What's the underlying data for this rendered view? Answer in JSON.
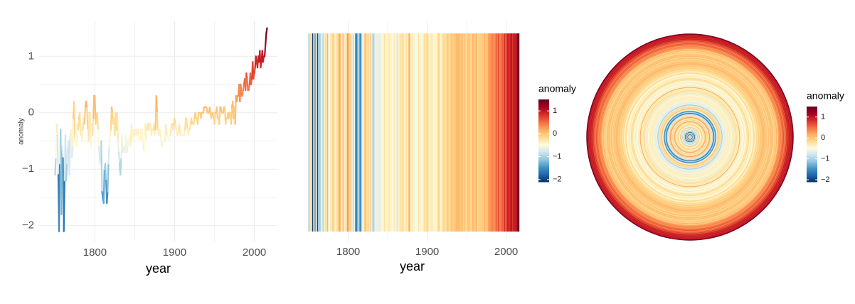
{
  "chart_data": [
    {
      "type": "line",
      "ylabel": "anomaly",
      "xlabel": "year",
      "x": [
        1750,
        1751,
        1752,
        1753,
        1754,
        1755,
        1756,
        1757,
        1758,
        1759,
        1760,
        1761,
        1762,
        1763,
        1764,
        1765,
        1766,
        1767,
        1768,
        1769,
        1770,
        1771,
        1772,
        1773,
        1774,
        1775,
        1776,
        1777,
        1778,
        1779,
        1780,
        1781,
        1782,
        1783,
        1784,
        1785,
        1786,
        1787,
        1788,
        1789,
        1790,
        1791,
        1792,
        1793,
        1794,
        1795,
        1796,
        1797,
        1798,
        1799,
        1800,
        1801,
        1802,
        1803,
        1804,
        1805,
        1806,
        1807,
        1808,
        1809,
        1810,
        1811,
        1812,
        1813,
        1814,
        1815,
        1816,
        1817,
        1818,
        1819,
        1820,
        1821,
        1822,
        1823,
        1824,
        1825,
        1826,
        1827,
        1828,
        1829,
        1830,
        1831,
        1832,
        1833,
        1834,
        1835,
        1836,
        1837,
        1838,
        1839,
        1840,
        1841,
        1842,
        1843,
        1844,
        1845,
        1846,
        1847,
        1848,
        1849,
        1850,
        1851,
        1852,
        1853,
        1854,
        1855,
        1856,
        1857,
        1858,
        1859,
        1860,
        1861,
        1862,
        1863,
        1864,
        1865,
        1866,
        1867,
        1868,
        1869,
        1870,
        1871,
        1872,
        1873,
        1874,
        1875,
        1876,
        1877,
        1878,
        1879,
        1880,
        1881,
        1882,
        1883,
        1884,
        1885,
        1886,
        1887,
        1888,
        1889,
        1890,
        1891,
        1892,
        1893,
        1894,
        1895,
        1896,
        1897,
        1898,
        1899,
        1900,
        1901,
        1902,
        1903,
        1904,
        1905,
        1906,
        1907,
        1908,
        1909,
        1910,
        1911,
        1912,
        1913,
        1914,
        1915,
        1916,
        1917,
        1918,
        1919,
        1920,
        1921,
        1922,
        1923,
        1924,
        1925,
        1926,
        1927,
        1928,
        1929,
        1930,
        1931,
        1932,
        1933,
        1934,
        1935,
        1936,
        1937,
        1938,
        1939,
        1940,
        1941,
        1942,
        1943,
        1944,
        1945,
        1946,
        1947,
        1948,
        1949,
        1950,
        1951,
        1952,
        1953,
        1954,
        1955,
        1956,
        1957,
        1958,
        1959,
        1960,
        1961,
        1962,
        1963,
        1964,
        1965,
        1966,
        1967,
        1968,
        1969,
        1970,
        1971,
        1972,
        1973,
        1974,
        1975,
        1976,
        1977,
        1978,
        1979,
        1980,
        1981,
        1982,
        1983,
        1984,
        1985,
        1986,
        1987,
        1988,
        1989,
        1990,
        1991,
        1992,
        1993,
        1994,
        1995,
        1996,
        1997,
        1998,
        1999,
        2000,
        2001,
        2002,
        2003,
        2004,
        2005,
        2006,
        2007,
        2008,
        2009,
        2010,
        2011,
        2012,
        2013,
        2014,
        2015,
        2016
      ],
      "values": [
        -1.1,
        -0.8,
        -0.2,
        -0.4,
        -1.1,
        -2.1,
        -0.9,
        -0.3,
        -1.8,
        -0.6,
        -0.8,
        -2.1,
        -1.2,
        -0.4,
        -1.2,
        -0.9,
        -0.6,
        -0.5,
        -1.1,
        -0.4,
        -0.3,
        -0.8,
        -0.6,
        -0.1,
        0.2,
        -0.5,
        -0.4,
        -0.6,
        -0.2,
        -0.3,
        -0.1,
        0.0,
        -0.4,
        -0.2,
        -0.5,
        -0.3,
        -0.1,
        -0.2,
        0.1,
        0.2,
        0.1,
        -0.3,
        -0.5,
        0.0,
        0.0,
        -0.6,
        -0.2,
        -0.4,
        -0.1,
        0.3,
        0.3,
        -0.2,
        -0.1,
        0.0,
        -0.3,
        -0.6,
        -0.8,
        -0.9,
        -0.5,
        -1.4,
        -1.5,
        -1.6,
        -1.0,
        -0.9,
        -1.2,
        -1.6,
        -1.4,
        -0.9,
        -0.6,
        -0.4,
        -0.3,
        0.1,
        0.0,
        -0.2,
        -0.1,
        -0.4,
        0.0,
        -0.3,
        0.0,
        -0.5,
        -0.7,
        -0.9,
        -1.1,
        -0.8,
        -0.4,
        -0.7,
        -0.6,
        -0.6,
        -0.7,
        -0.4,
        -0.7,
        -0.6,
        -0.5,
        -0.4,
        -0.6,
        -0.5,
        -0.2,
        -0.5,
        -0.3,
        -0.4,
        -0.4,
        -0.3,
        -0.3,
        -0.4,
        -0.3,
        -0.4,
        -0.5,
        -0.5,
        -0.3,
        -0.3,
        -0.5,
        -0.6,
        -0.7,
        -0.2,
        -0.5,
        -0.3,
        -0.2,
        -0.3,
        -0.2,
        -0.2,
        -0.2,
        -0.4,
        -0.3,
        -0.3,
        -0.2,
        -0.4,
        -0.3,
        0.3,
        0.0,
        -0.3,
        -0.4,
        -0.3,
        -0.3,
        -0.5,
        -0.6,
        -0.5,
        -0.5,
        -0.5,
        -0.5,
        -0.2,
        -0.4,
        -0.4,
        -0.5,
        -0.5,
        -0.4,
        -0.4,
        -0.2,
        -0.2,
        -0.3,
        -0.2,
        -0.1,
        -0.2,
        -0.3,
        -0.4,
        -0.4,
        -0.3,
        -0.2,
        -0.4,
        -0.4,
        -0.4,
        -0.4,
        -0.4,
        -0.4,
        -0.3,
        -0.1,
        -0.1,
        -0.3,
        -0.4,
        -0.3,
        -0.3,
        -0.2,
        -0.1,
        -0.2,
        -0.2,
        -0.2,
        -0.1,
        0.0,
        -0.1,
        -0.1,
        -0.2,
        0.0,
        0.0,
        0.0,
        -0.1,
        0.0,
        0.0,
        0.0,
        0.1,
        0.1,
        0.1,
        0.1,
        0.0,
        0.0,
        0.0,
        0.1,
        0.0,
        -0.1,
        0.0,
        0.0,
        -0.1,
        -0.2,
        0.0,
        0.0,
        0.1,
        -0.1,
        -0.1,
        -0.2,
        0.1,
        0.1,
        0.0,
        0.0,
        0.0,
        0.1,
        0.1,
        -0.2,
        -0.1,
        -0.1,
        0.0,
        -0.1,
        0.0,
        0.0,
        -0.2,
        0.1,
        0.2,
        -0.1,
        0.1,
        -0.2,
        0.3,
        0.2,
        0.3,
        0.3,
        0.5,
        0.2,
        0.5,
        0.3,
        0.3,
        0.4,
        0.5,
        0.6,
        0.4,
        0.7,
        0.6,
        0.4,
        0.4,
        0.5,
        0.7,
        0.5,
        0.6,
        0.9,
        0.6,
        0.7,
        0.8,
        1.0,
        0.9,
        0.8,
        1.0,
        0.9,
        1.1,
        0.8,
        0.9,
        1.1,
        0.9,
        1.0,
        1.0,
        1.2,
        1.4,
        1.5
      ],
      "colors": [
        "#053061",
        "#2166ac",
        "#4393c3",
        "#92c5de",
        "#d1e5f0",
        "#fefcdc",
        "#fed98e",
        "#fdae61",
        "#f46d43",
        "#d73027",
        "#a50026",
        "#67001f"
      ],
      "xlim": [
        1730,
        2029
      ],
      "xticks": [
        1800,
        1900,
        2000
      ],
      "ylim": [
        -2.28,
        1.62
      ],
      "yticks": [
        1,
        0,
        {
          "value": -1,
          "label": "−1"
        },
        {
          "value": -2,
          "label": "−2"
        }
      ],
      "grid": true
    },
    {
      "type": "stripes",
      "xlabel": "year",
      "xlim": [
        1731,
        2031
      ],
      "xticks": [
        1800,
        1900,
        2000
      ],
      "grid": true,
      "legend_title": "anomaly",
      "legend_ticks": [
        1,
        0,
        {
          "value": -1,
          "label": "−1"
        },
        {
          "value": -2,
          "label": "−2"
        }
      ]
    },
    {
      "type": "polar-stripes",
      "rlim": [
        1749,
        2017
      ],
      "legend_title": "anomaly",
      "legend_ticks": [
        1,
        0,
        {
          "value": -1,
          "label": "−1"
        },
        {
          "value": -2,
          "label": "−2"
        }
      ]
    }
  ]
}
